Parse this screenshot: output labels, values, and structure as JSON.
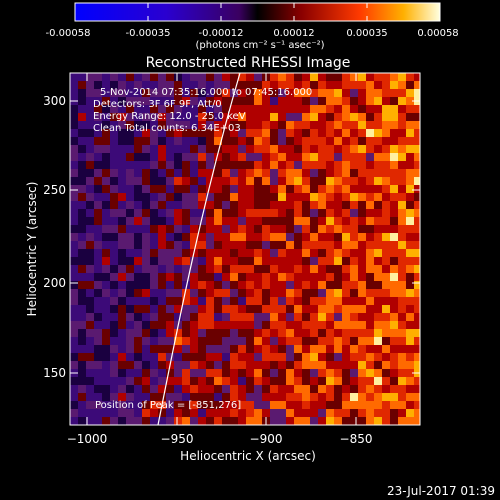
{
  "colorbar": {
    "ticks": [
      "-0.00058",
      "-0.00035",
      "-0.00012",
      "0.00012",
      "0.00035",
      "0.00058"
    ],
    "units": "(photons cm⁻² s⁻¹ asec⁻²)"
  },
  "plot": {
    "title": "Reconstructed RHESSI Image",
    "xlabel": "Heliocentric X (arcsec)",
    "ylabel": "Heliocentric Y (arcsec)",
    "xticks": [
      "−1000",
      "−950",
      "−900",
      "−850"
    ],
    "yticks": [
      "300",
      "250",
      "200",
      "150"
    ],
    "info": [
      "5-Nov-2014 07:35:16.000 to 07:45:16.000",
      "Detectors: 3F 6F 9F, Att/0",
      "Energy Range: 12.0 - 25.0 keV",
      "Clean    Total counts: 6.34E+03"
    ],
    "peak": "Position of Peak = [-851,276]"
  },
  "footer": {
    "timestamp": "23-Jul-2017 01:39"
  }
}
